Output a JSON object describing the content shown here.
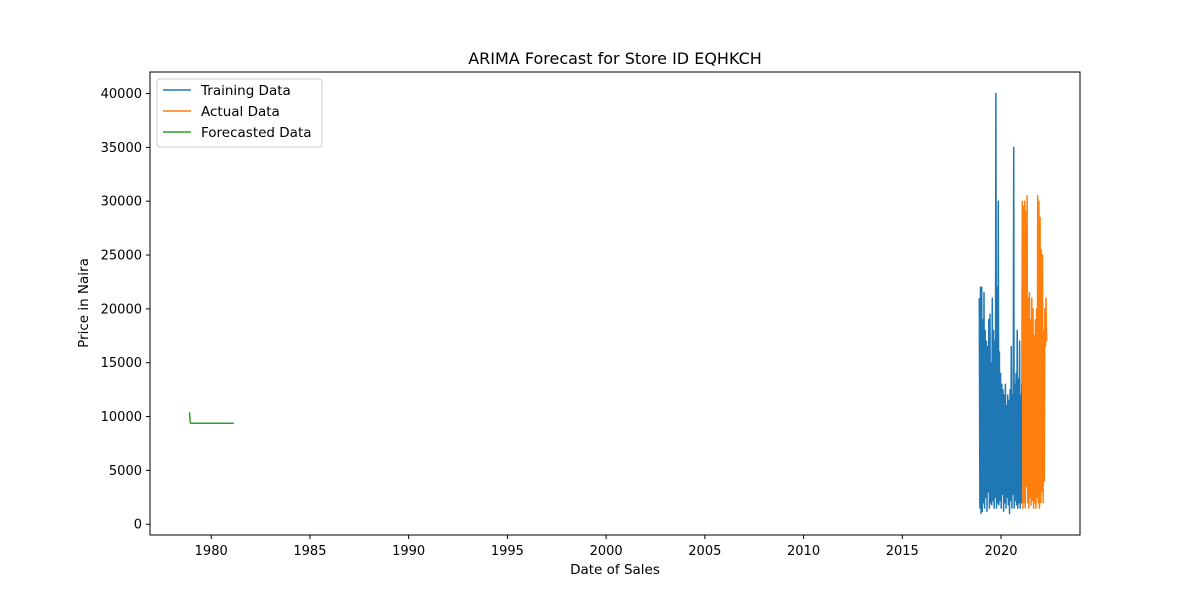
{
  "chart_data": {
    "type": "line",
    "title": "ARIMA Forecast for Store ID EQHKCH",
    "xlabel": "Date of Sales",
    "ylabel": "Price in Naira",
    "xlim": [
      1976.9,
      2024.0
    ],
    "ylim": [
      -1000,
      42000
    ],
    "x_ticks": [
      1980,
      1985,
      1990,
      1995,
      2000,
      2005,
      2010,
      2015,
      2020
    ],
    "x_tick_labels": [
      "1980",
      "1985",
      "1990",
      "1995",
      "2000",
      "2005",
      "2010",
      "2015",
      "2020"
    ],
    "y_ticks": [
      0,
      5000,
      10000,
      15000,
      20000,
      25000,
      30000,
      35000,
      40000
    ],
    "y_tick_labels": [
      "0",
      "5000",
      "10000",
      "15000",
      "20000",
      "25000",
      "30000",
      "35000",
      "40000"
    ],
    "grid": false,
    "legend_position": "upper-left",
    "series": [
      {
        "name": "Training Data",
        "color": "#1f77b4",
        "x": [
          2018.9,
          2018.93,
          2018.96,
          2018.99,
          2019.02,
          2019.05,
          2019.08,
          2019.11,
          2019.14,
          2019.17,
          2019.2,
          2019.23,
          2019.26,
          2019.29,
          2019.32,
          2019.35,
          2019.38,
          2019.41,
          2019.44,
          2019.47,
          2019.5,
          2019.53,
          2019.56,
          2019.59,
          2019.62,
          2019.65,
          2019.68,
          2019.71,
          2019.74,
          2019.77,
          2019.8,
          2019.83,
          2019.86,
          2019.89,
          2019.92,
          2019.95,
          2019.98,
          2020.01,
          2020.04,
          2020.07,
          2020.1,
          2020.13,
          2020.16,
          2020.19,
          2020.22,
          2020.25,
          2020.28,
          2020.31,
          2020.34,
          2020.37,
          2020.4,
          2020.43,
          2020.46,
          2020.49,
          2020.52,
          2020.55,
          2020.58,
          2020.61,
          2020.64,
          2020.67,
          2020.7,
          2020.73,
          2020.76,
          2020.79,
          2020.82,
          2020.85,
          2020.88,
          2020.91,
          2020.94,
          2020.97,
          2021.0,
          2021.03,
          2021.05
        ],
        "y": [
          21000,
          1500,
          22000,
          1000,
          22000,
          1200,
          19000,
          2000,
          21500,
          1500,
          18000,
          2500,
          17000,
          1200,
          16500,
          3000,
          19000,
          1500,
          19500,
          2000,
          15000,
          1800,
          21000,
          2200,
          18000,
          1500,
          17000,
          2500,
          40000,
          1500,
          22000,
          2000,
          30000,
          1800,
          16000,
          2200,
          14000,
          1500,
          13000,
          2800,
          12500,
          1200,
          12000,
          2000,
          13000,
          1500,
          11000,
          2500,
          12000,
          1800,
          11500,
          1000,
          12500,
          2200,
          16500,
          1500,
          12000,
          2800,
          35000,
          1500,
          13000,
          2200,
          14000,
          1800,
          18000,
          1500,
          13500,
          2000,
          17000,
          1500,
          12000,
          2000,
          13000
        ]
      },
      {
        "name": "Actual Data",
        "color": "#ff7f0e",
        "x": [
          2021.05,
          2021.08,
          2021.11,
          2021.14,
          2021.17,
          2021.2,
          2021.23,
          2021.26,
          2021.29,
          2021.32,
          2021.35,
          2021.38,
          2021.41,
          2021.44,
          2021.47,
          2021.5,
          2021.53,
          2021.56,
          2021.59,
          2021.62,
          2021.65,
          2021.68,
          2021.71,
          2021.74,
          2021.77,
          2021.8,
          2021.83,
          2021.86,
          2021.89,
          2021.92,
          2021.95,
          2021.98,
          2022.01,
          2022.04,
          2022.07,
          2022.1,
          2022.13,
          2022.16,
          2022.19,
          2022.22,
          2022.25,
          2022.28,
          2022.31
        ],
        "y": [
          13000,
          30000,
          1500,
          29500,
          2000,
          30000,
          1500,
          29000,
          3500,
          30500,
          2000,
          21000,
          1500,
          21500,
          2500,
          19000,
          1800,
          21000,
          2200,
          20000,
          1500,
          17500,
          2000,
          19000,
          1500,
          20000,
          2500,
          30500,
          2000,
          30000,
          1500,
          28500,
          2000,
          25500,
          3000,
          25000,
          2000,
          18000,
          4000,
          20000,
          16500,
          21000,
          17000
        ]
      },
      {
        "name": "Forecasted Data",
        "color": "#2ca02c",
        "x": [
          1978.9,
          1978.94,
          1979.0,
          1979.2,
          1979.5,
          1979.8,
          1980.1,
          1980.4,
          1980.7,
          1981.0,
          1981.15
        ],
        "y": [
          10400,
          9400,
          9380,
          9370,
          9370,
          9370,
          9370,
          9370,
          9370,
          9370,
          9370
        ]
      }
    ]
  }
}
